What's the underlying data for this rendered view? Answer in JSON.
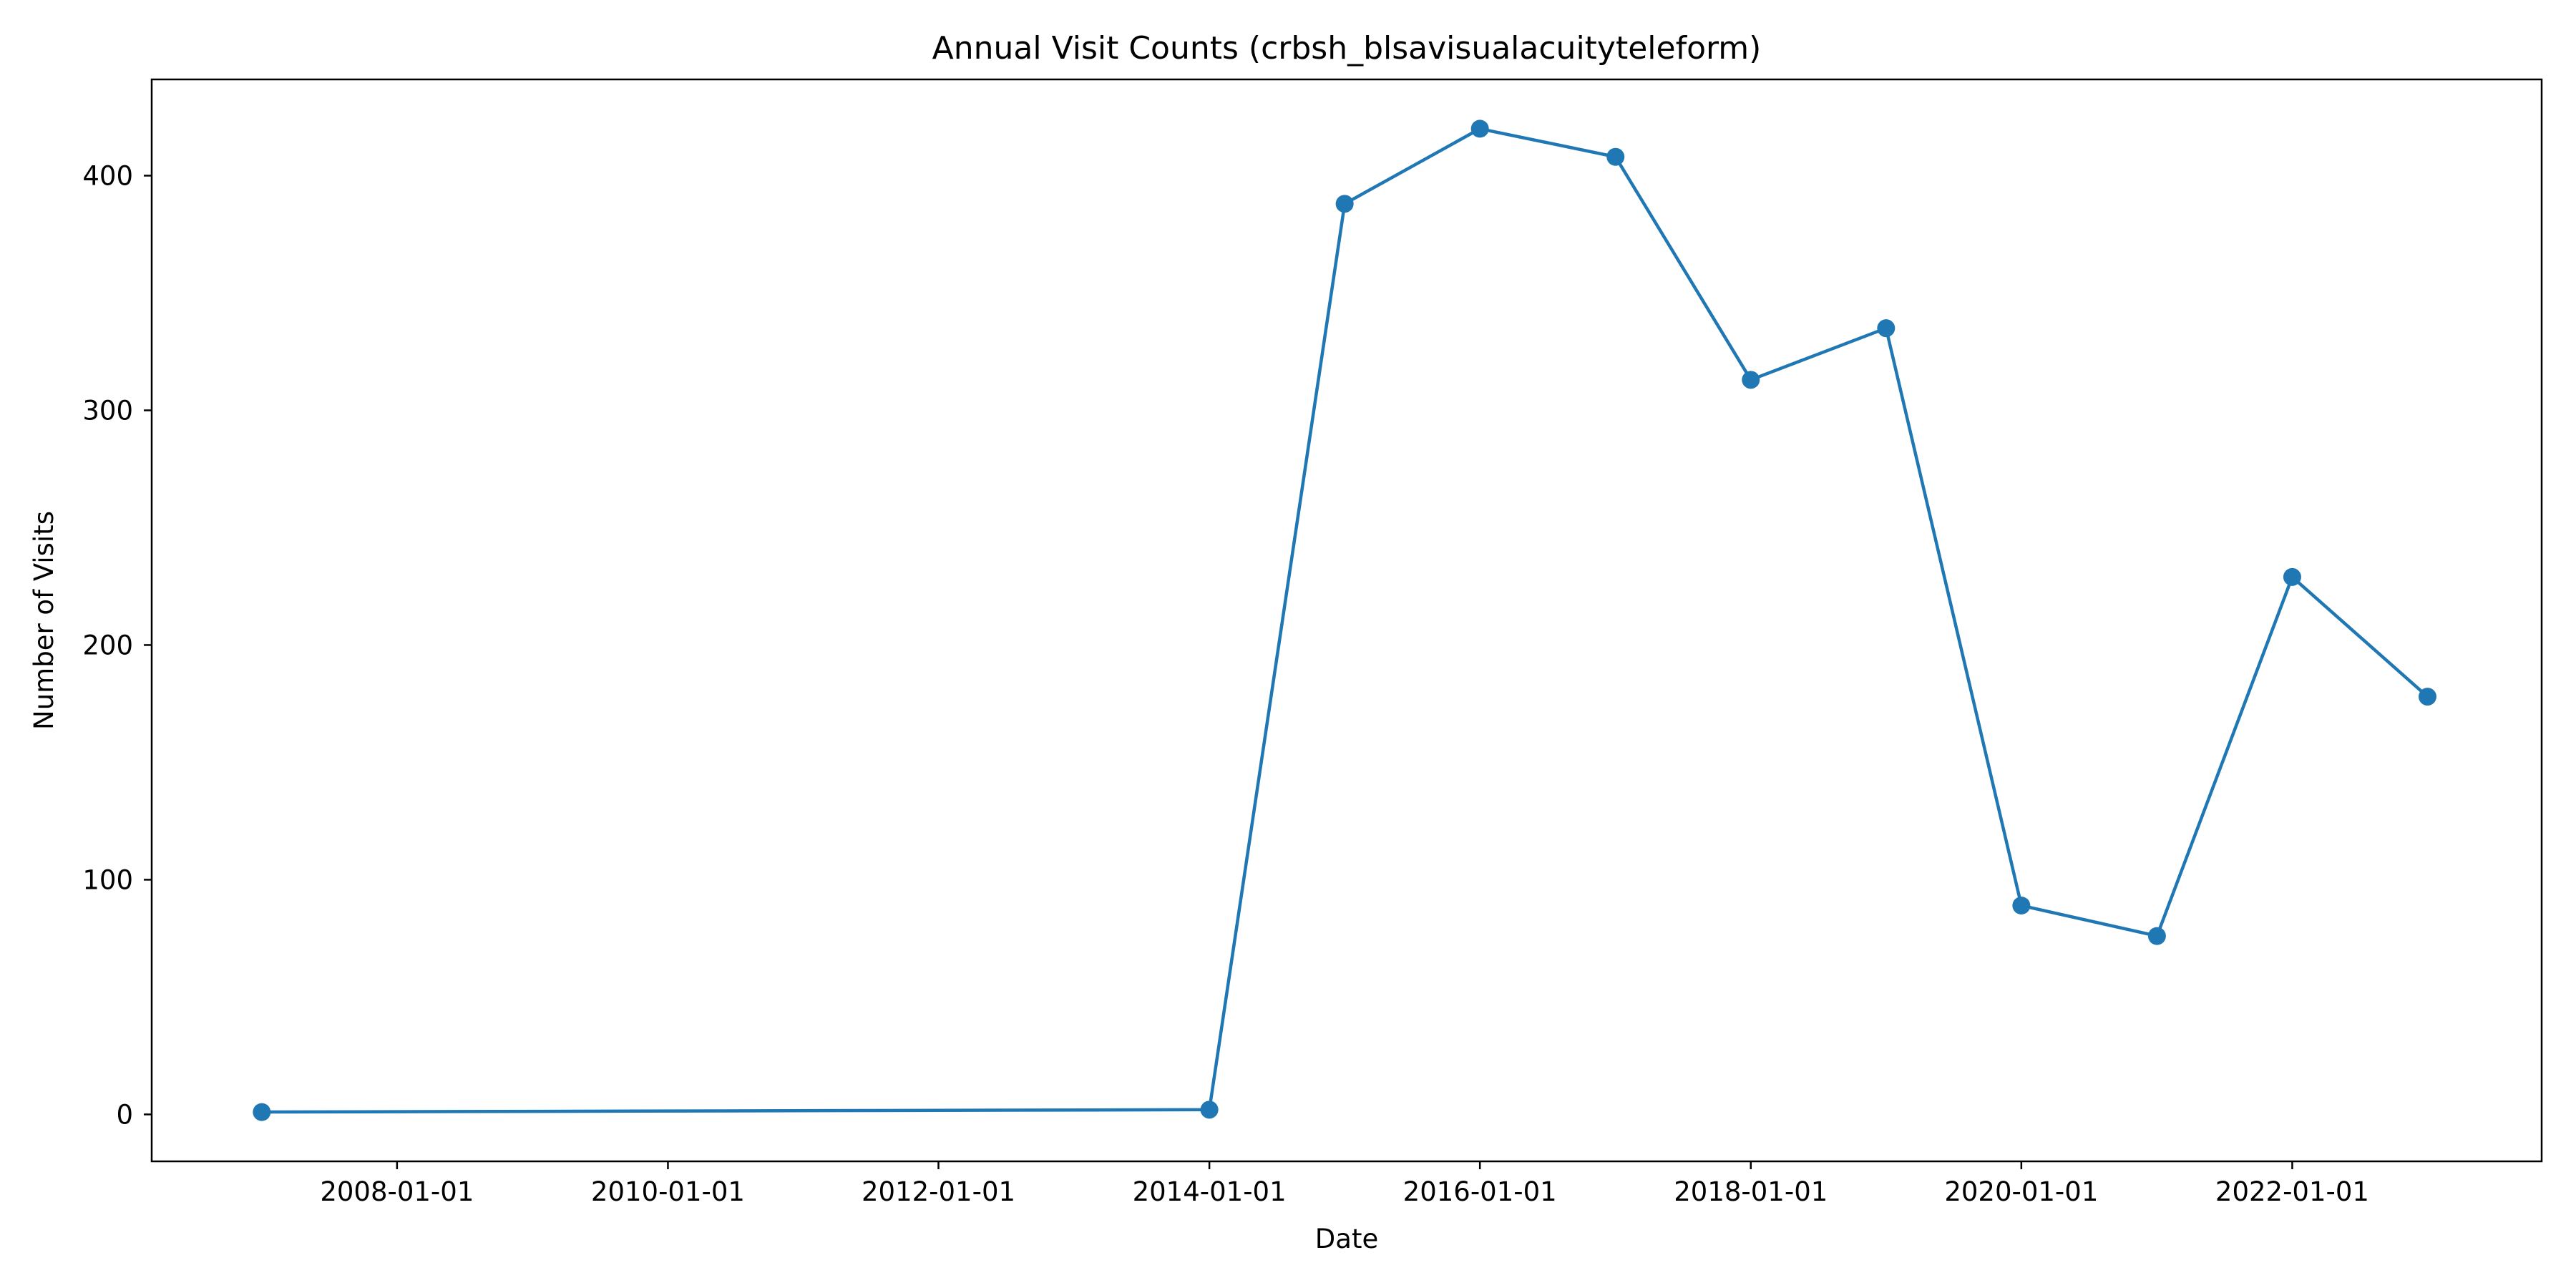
{
  "chart_data": {
    "type": "line",
    "title": "Annual Visit Counts (crbsh_blsavisualacuityteleform)",
    "xlabel": "Date",
    "ylabel": "Number of Visits",
    "x_axis_type": "date",
    "x_ticks": [
      "2008-01-01",
      "2010-01-01",
      "2012-01-01",
      "2014-01-01",
      "2016-01-01",
      "2018-01-01",
      "2020-01-01",
      "2022-01-01"
    ],
    "y_ticks": [
      0,
      100,
      200,
      300,
      400
    ],
    "xlim": [
      "2006-03-10",
      "2023-11-05"
    ],
    "ylim": [
      -20,
      441
    ],
    "grid": false,
    "marker": "circle",
    "color": "#1f77b4",
    "series": [
      {
        "x": [
          "2007-01-01",
          "2014-01-01",
          "2015-01-01",
          "2016-01-01",
          "2017-01-01",
          "2018-01-01",
          "2019-01-01",
          "2020-01-01",
          "2021-01-01",
          "2022-01-01",
          "2023-01-01"
        ],
        "values": [
          1,
          2,
          388,
          420,
          408,
          313,
          335,
          89,
          76,
          229,
          178
        ]
      }
    ]
  }
}
